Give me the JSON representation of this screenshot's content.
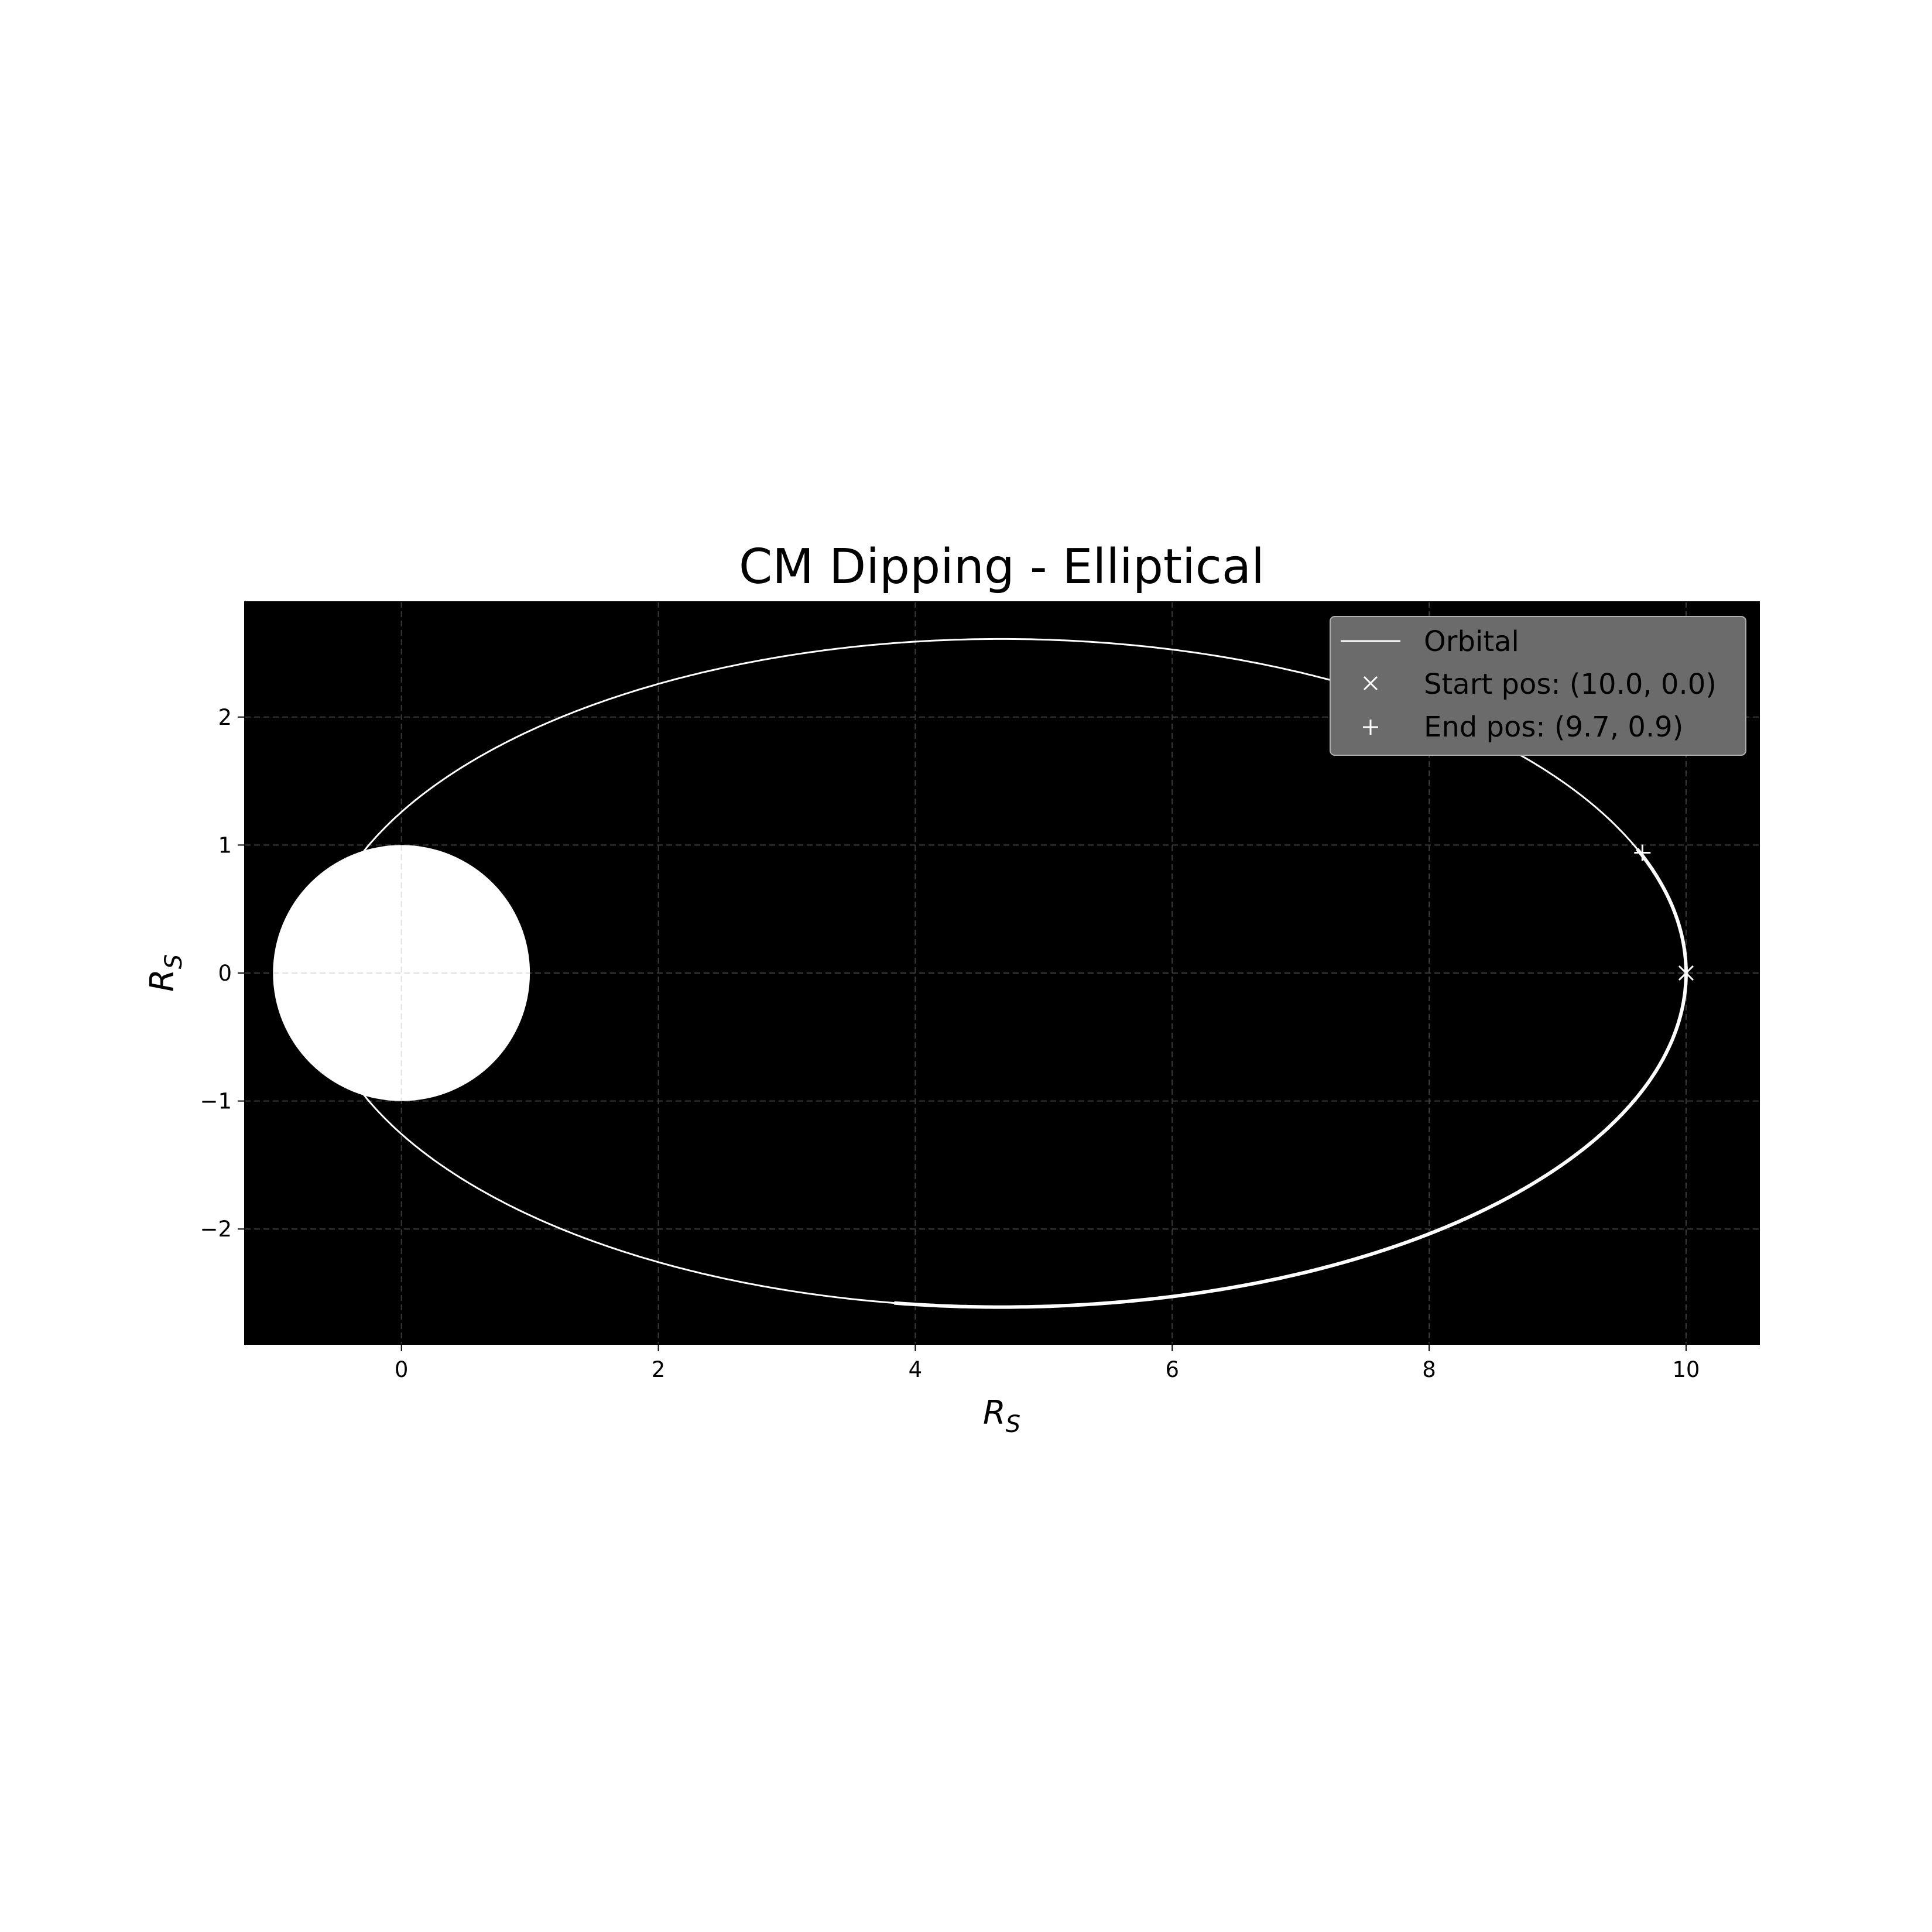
{
  "chart_data": {
    "type": "scatter",
    "title": "CM Dipping - Elliptical",
    "xlabel": {
      "main": "R",
      "sub": "S"
    },
    "ylabel": {
      "main": "R",
      "sub": "S"
    },
    "xlim": [
      -1.22,
      10.57
    ],
    "ylim": [
      -2.9,
      2.9
    ],
    "xticks": [
      0,
      2,
      4,
      6,
      8,
      10
    ],
    "yticks": [
      -2,
      -1,
      0,
      1,
      2
    ],
    "xtick_labels": [
      "0",
      "2",
      "4",
      "6",
      "8",
      "10"
    ],
    "ytick_labels": [
      "−2",
      "−1",
      "0",
      "1",
      "2"
    ],
    "grid": true,
    "background": "#000000",
    "foreground": "#ffffff",
    "central_body": {
      "x": 0,
      "y": 0,
      "radius": 1.0
    },
    "orbit": {
      "name": "Orbital",
      "focus_x": 0,
      "focus_y": 0,
      "center_x": 4.67,
      "center_y": 0,
      "semi_major": 5.33,
      "semi_minor": 2.61
    },
    "markers": [
      {
        "name": "Start pos: (10.0, 0.0)",
        "symbol": "x",
        "x": 10.0,
        "y": 0.0
      },
      {
        "name": "End pos: (9.7, 0.9)",
        "symbol": "+",
        "x": 9.66,
        "y": 0.94
      }
    ],
    "legend": {
      "position": "top-right",
      "entries": [
        "Orbital",
        "Start pos: (10.0, 0.0)",
        "End pos: (9.7, 0.9)"
      ]
    }
  }
}
